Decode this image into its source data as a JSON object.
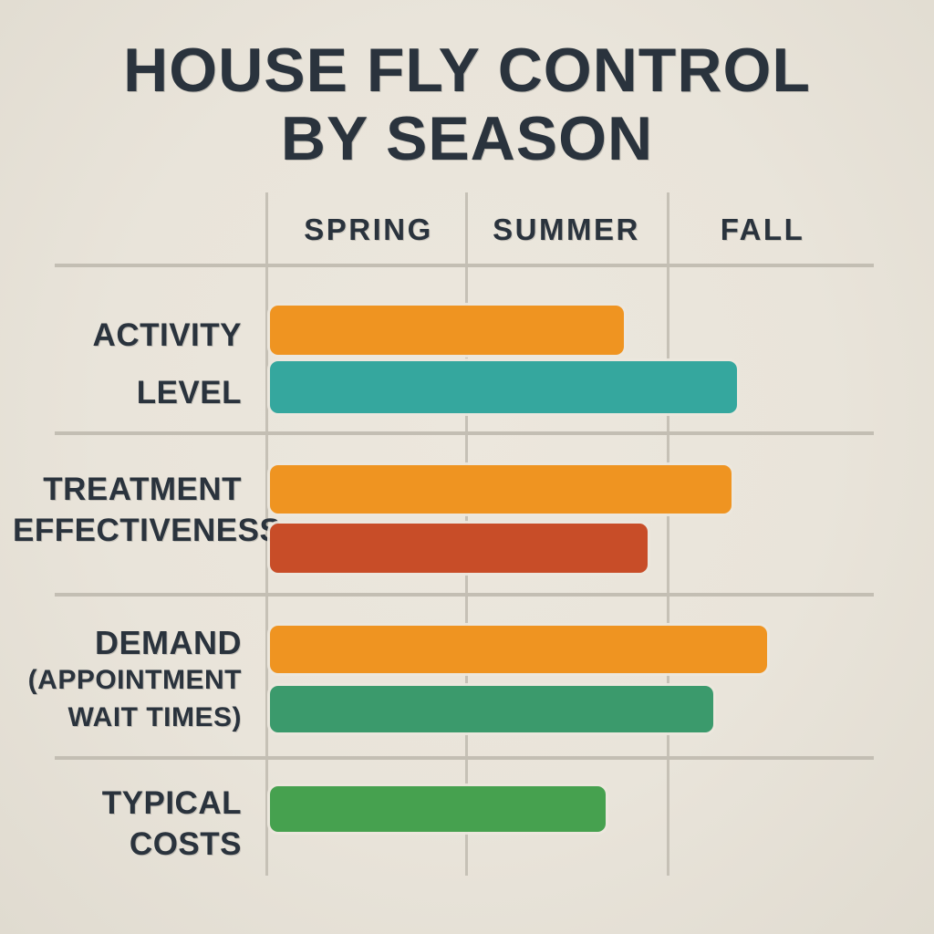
{
  "title": {
    "line1": "HOUSE FLY CONTROL",
    "line2": "BY SEASON"
  },
  "colors": {
    "background": "#eae5db",
    "text": "#2a333d",
    "gridline": "#c6c1b6",
    "orange": "#ef9421",
    "teal": "#35a79e",
    "rust": "#c84d28",
    "seagreen": "#3b9a6c",
    "green": "#46a14f"
  },
  "chart_data": {
    "type": "bar",
    "orientation": "horizontal",
    "title": "HOUSE FLY CONTROL BY SEASON",
    "season_labels": [
      "SPRING",
      "SUMMER",
      "FALL"
    ],
    "x_axis": {
      "categories": [
        "SPRING",
        "SUMMER",
        "FALL"
      ],
      "range_pct": [
        0,
        100
      ],
      "gridlines": true,
      "note": "bars are unlabeled qualitative levels spanning the Spring-to-Fall scale"
    },
    "rows": [
      {
        "label": "ACTIVITY LEVEL",
        "label_lines": [
          "ACTIVITY",
          "LEVEL"
        ],
        "bars": [
          {
            "color": "orange",
            "length_pct": 59
          },
          {
            "color": "teal",
            "length_pct": 78
          }
        ]
      },
      {
        "label": "TREATMENT EFFECTIVENESS",
        "label_lines": [
          "TREATMENT",
          "EFFECTIVENESS"
        ],
        "bars": [
          {
            "color": "orange",
            "length_pct": 77
          },
          {
            "color": "rust",
            "length_pct": 63
          }
        ]
      },
      {
        "label": "DEMAND (APPOINTMENT WAIT TIMES)",
        "label_lines": [
          "DEMAND",
          "(APPOINTMENT",
          "WAIT TIMES)"
        ],
        "bars": [
          {
            "color": "orange",
            "length_pct": 83
          },
          {
            "color": "seagreen",
            "length_pct": 74
          }
        ]
      },
      {
        "label": "TYPICAL COSTS",
        "label_lines": [
          "TYPICAL",
          "COSTS"
        ],
        "bars": [
          {
            "color": "green",
            "length_pct": 56
          }
        ]
      }
    ]
  }
}
